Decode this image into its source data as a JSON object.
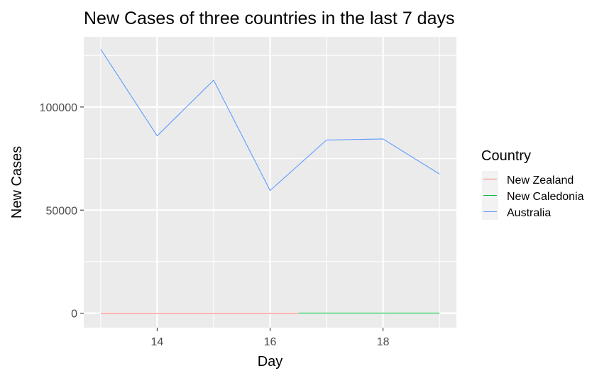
{
  "chart_data": {
    "type": "line",
    "title": "New Cases of three countries in the last 7 days",
    "xlabel": "Day",
    "ylabel": "New Cases",
    "xlim": [
      12.7,
      19.3
    ],
    "ylim": [
      -7000,
      134000
    ],
    "x_ticks": [
      14,
      16,
      18
    ],
    "x_tick_labels": [
      "14",
      "16",
      "18"
    ],
    "x_minor_ticks": [
      13,
      15,
      17,
      19
    ],
    "y_ticks": [
      0,
      50000,
      100000
    ],
    "y_tick_labels": [
      "0",
      "50000",
      "100000"
    ],
    "y_minor_ticks": [
      25000,
      75000,
      125000
    ],
    "grid": true,
    "background": "#ebebeb",
    "legend": {
      "title": "Country",
      "position": "right",
      "entries": [
        "New Zealand",
        "New Caledonia",
        "Australia"
      ]
    },
    "series": [
      {
        "name": "New Zealand",
        "color": "#f8766d",
        "points": [
          [
            13,
            20
          ],
          [
            14,
            25
          ],
          [
            15,
            30
          ],
          [
            16,
            20
          ],
          [
            16.5,
            15
          ]
        ]
      },
      {
        "name": "New Caledonia",
        "color": "#00ba38",
        "points": [
          [
            16.5,
            60
          ],
          [
            17,
            80
          ],
          [
            18,
            70
          ],
          [
            19,
            65
          ]
        ]
      },
      {
        "name": "Australia",
        "color": "#619cff",
        "points": [
          [
            13,
            128000
          ],
          [
            14,
            86000
          ],
          [
            15,
            113000
          ],
          [
            16,
            59500
          ],
          [
            17,
            84000
          ],
          [
            18,
            84500
          ],
          [
            19,
            67500
          ]
        ]
      }
    ]
  }
}
